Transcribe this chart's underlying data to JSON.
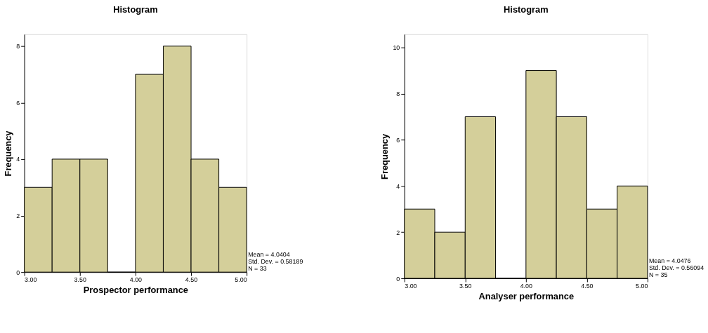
{
  "chart_data": [
    {
      "type": "histogram",
      "title": "Histogram",
      "xlabel": "Prospector performance",
      "ylabel": "Frequency",
      "bins": [
        3.0,
        3.25,
        3.5,
        3.75,
        4.0,
        4.25,
        4.5,
        4.75,
        5.0
      ],
      "values": [
        3,
        4,
        4,
        0,
        7,
        8,
        4,
        3
      ],
      "color": "#d4cf9a",
      "xlim": [
        3,
        5
      ],
      "xticks": [
        {
          "value": 3,
          "label": "3.00"
        },
        {
          "value": 3.5,
          "label": "3.50"
        },
        {
          "value": 4,
          "label": "4.00"
        },
        {
          "value": 4.5,
          "label": "4.50"
        },
        {
          "value": 5,
          "label": "5.00"
        }
      ],
      "ylim": [
        0,
        8.42
      ],
      "yticks": [
        0,
        2,
        4,
        6,
        8
      ],
      "grid": false,
      "annotations": [
        "Mean = 4.0404",
        "Std. Dev. = 0.58189",
        "N = 33"
      ]
    },
    {
      "type": "histogram",
      "title": "Histogram",
      "xlabel": "Analyser performance",
      "ylabel": "Frequency",
      "bins": [
        3.0,
        3.25,
        3.5,
        3.75,
        4.0,
        4.25,
        4.5,
        4.75,
        5.0
      ],
      "values": [
        3,
        2,
        7,
        0,
        9,
        7,
        3,
        4
      ],
      "color": "#d4cf9a",
      "xlim": [
        3,
        5
      ],
      "xticks": [
        {
          "value": 3,
          "label": "3.00"
        },
        {
          "value": 3.5,
          "label": "3.50"
        },
        {
          "value": 4,
          "label": "4.00"
        },
        {
          "value": 4.5,
          "label": "4.50"
        },
        {
          "value": 5,
          "label": "5.00"
        }
      ],
      "ylim": [
        0,
        10.57
      ],
      "yticks": [
        0,
        2,
        4,
        6,
        8,
        10
      ],
      "grid": false,
      "annotations": [
        "Mean = 4.0476",
        "Std. Dev. = 0.56094",
        "N = 35"
      ]
    }
  ]
}
